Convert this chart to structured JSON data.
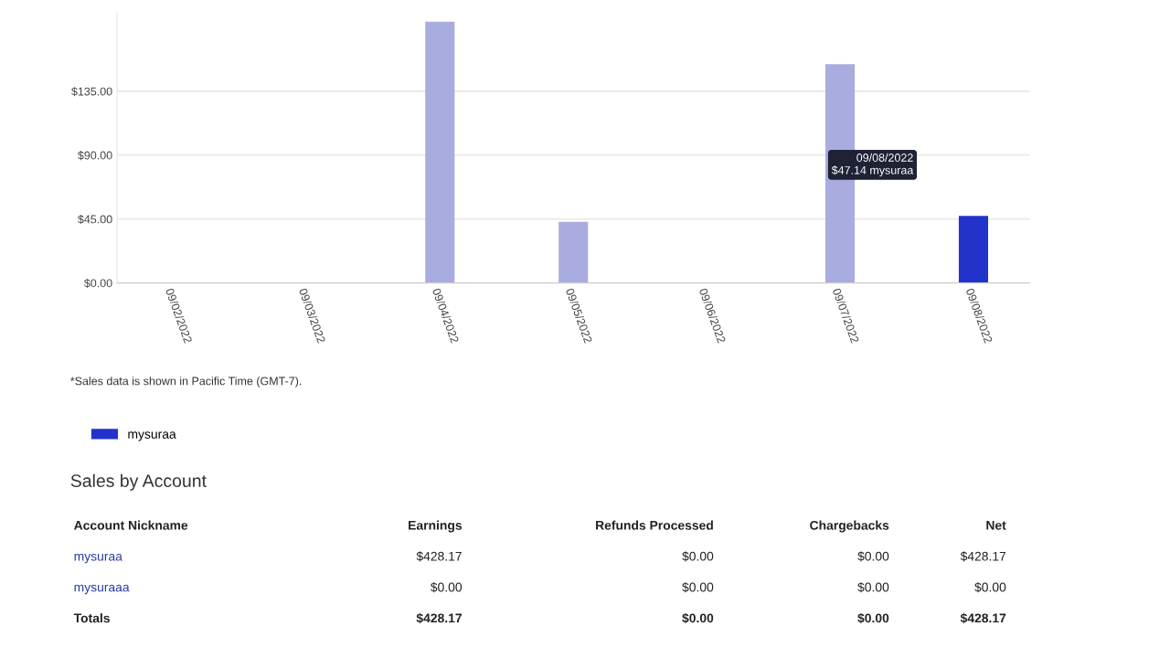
{
  "chart_data": {
    "type": "bar",
    "categories": [
      "09/02/2022",
      "09/03/2022",
      "09/04/2022",
      "09/05/2022",
      "09/06/2022",
      "09/07/2022",
      "09/08/2022"
    ],
    "series": [
      {
        "name": "mysuraa",
        "color": "#2233cc",
        "colors": [
          "#a9acdf",
          "#a9acdf",
          "#a9acdf",
          "#a9acdf",
          "#a9acdf",
          "#a9acdf",
          "#2233cc"
        ],
        "values": [
          0,
          0,
          184,
          43,
          0,
          154,
          47.14
        ]
      }
    ],
    "ylim": [
      0,
      190
    ],
    "yticks": [
      {
        "value": 0,
        "label": "$0.00"
      },
      {
        "value": 45,
        "label": "$45.00"
      },
      {
        "value": 90,
        "label": "$90.00"
      },
      {
        "value": 135,
        "label": "$135.00"
      }
    ],
    "grid": "y",
    "legend": "bottom left",
    "annotations": [
      "09/08/2022\n$47.14 mysuraa",
      "*Sales data is shown in Pacific Time (GMT-7).",
      "Sales by Account",
      "Account Nickname",
      "Earnings",
      "Refunds Processed",
      "Chargebacks",
      "Net",
      "mysuraa",
      "$428.17",
      "$0.00",
      "$0.00",
      "$428.17",
      "mysuraaa",
      "$0.00",
      "$0.00",
      "$0.00",
      "$0.00",
      "Totals",
      "$428.17",
      "$0.00",
      "$0.00",
      "$428.17"
    ]
  }
}
